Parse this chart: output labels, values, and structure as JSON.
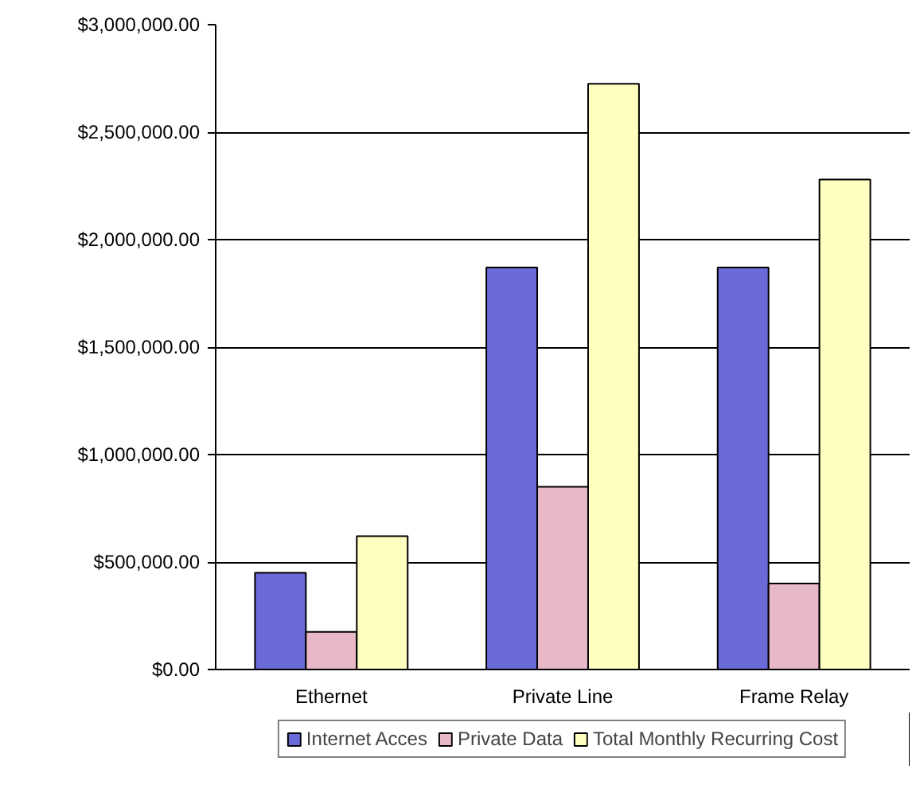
{
  "chart_data": {
    "type": "bar",
    "categories": [
      "Ethernet",
      "Private Line",
      "Frame Relay"
    ],
    "series": [
      {
        "name": "Internet Acces",
        "color": "#6a6ad8",
        "values": [
          450000,
          1870000,
          1870000
        ]
      },
      {
        "name": "Private Data",
        "color": "#e8b8c8",
        "values": [
          175000,
          850000,
          400000
        ]
      },
      {
        "name": "Total Monthly Recurring Cost",
        "color": "#ffffc0",
        "values": [
          620000,
          2725000,
          2280000
        ]
      }
    ],
    "ylim": [
      0,
      3000000
    ],
    "yticks": [
      {
        "value": 0,
        "label": "$0.00"
      },
      {
        "value": 500000,
        "label": "$500,000.00"
      },
      {
        "value": 1000000,
        "label": "$1,000,000.00"
      },
      {
        "value": 1500000,
        "label": "$1,500,000.00"
      },
      {
        "value": 2000000,
        "label": "$2,000,000.00"
      },
      {
        "value": 2500000,
        "label": "$2,500,000.00"
      },
      {
        "value": 3000000,
        "label": "$3,000,000.00"
      }
    ],
    "grid": "y",
    "legend": "bottom"
  }
}
